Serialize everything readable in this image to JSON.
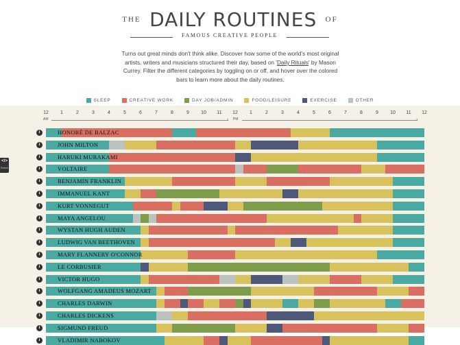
{
  "header": {
    "title_pre": "THE",
    "title_main": "DAILY ROUTINES",
    "title_post": "OF",
    "subtitle": "FAMOUS CREATIVE PEOPLE",
    "intro_1": "Turns out great minds don't think alike. Discover how some of the world's most original artists, writers and musicians structured their day, based on '",
    "intro_link": "Daily Rituals",
    "intro_2": "' by Mason Currey. Filter the different categories by toggling on or off, and hover over the colored bars to learn more about the daily routines."
  },
  "colors": {
    "sleep": "#4aa9a0",
    "creative": "#d96e62",
    "dayjob": "#7e9d4c",
    "food": "#d7c25e",
    "exercise": "#4e5879",
    "other": "#bcc2c0"
  },
  "legend": [
    {
      "key": "sleep",
      "label": "SLEEP"
    },
    {
      "key": "creative",
      "label": "CREATIVE WORK"
    },
    {
      "key": "dayjob",
      "label": "DAY JOB/ADMIN"
    },
    {
      "key": "food",
      "label": "FOOD/LEISURE"
    },
    {
      "key": "exercise",
      "label": "EXERCISE"
    },
    {
      "key": "other",
      "label": "OTHER"
    }
  ],
  "axis": {
    "ticks": [
      "12",
      "1",
      "2",
      "3",
      "4",
      "5",
      "6",
      "7",
      "8",
      "9",
      "10",
      "11",
      "12",
      "1",
      "2",
      "3",
      "4",
      "5",
      "6",
      "7",
      "8",
      "9",
      "10",
      "11",
      "12"
    ],
    "am": "AM",
    "pm": "PM"
  },
  "side_tab": {
    "glyph": "</>",
    "label": "Embed"
  },
  "info_glyph": "i",
  "people": [
    {
      "name": "HONORÉ DE BALZAC",
      "segments": [
        [
          "sleep",
          0,
          1
        ],
        [
          "creative",
          1,
          8
        ],
        [
          "sleep",
          8,
          9.5
        ],
        [
          "creative",
          9.5,
          15.5
        ],
        [
          "food",
          15.5,
          18
        ],
        [
          "sleep",
          18,
          24
        ]
      ]
    },
    {
      "name": "JOHN MILTON",
      "segments": [
        [
          "sleep",
          0,
          4
        ],
        [
          "other",
          4,
          5
        ],
        [
          "food",
          5,
          7
        ],
        [
          "creative",
          7,
          12
        ],
        [
          "food",
          12,
          13
        ],
        [
          "exercise",
          13,
          16
        ],
        [
          "food",
          16,
          21
        ],
        [
          "sleep",
          21,
          24
        ]
      ]
    },
    {
      "name": "HARUKI MURAKAMI",
      "segments": [
        [
          "sleep",
          0,
          4
        ],
        [
          "creative",
          4,
          12
        ],
        [
          "exercise",
          12,
          13
        ],
        [
          "food",
          13,
          21
        ],
        [
          "sleep",
          21,
          24
        ]
      ]
    },
    {
      "name": "VOLTAIRE",
      "segments": [
        [
          "sleep",
          0,
          4
        ],
        [
          "creative",
          4,
          12
        ],
        [
          "other",
          12,
          12.5
        ],
        [
          "creative",
          12.5,
          14
        ],
        [
          "dayjob",
          14,
          16
        ],
        [
          "creative",
          16,
          20
        ],
        [
          "food",
          20,
          21.5
        ],
        [
          "creative",
          21.5,
          24
        ]
      ]
    },
    {
      "name": "BENJAMIN FRANKLIN",
      "segments": [
        [
          "sleep",
          0,
          5
        ],
        [
          "food",
          5,
          8
        ],
        [
          "creative",
          8,
          12
        ],
        [
          "food",
          12,
          14
        ],
        [
          "creative",
          14,
          18
        ],
        [
          "food",
          18,
          22
        ],
        [
          "sleep",
          22,
          24
        ]
      ]
    },
    {
      "name": "IMMANUEL KANT",
      "segments": [
        [
          "sleep",
          0,
          5
        ],
        [
          "food",
          5,
          6
        ],
        [
          "creative",
          6,
          7
        ],
        [
          "dayjob",
          7,
          11
        ],
        [
          "food",
          11,
          15
        ],
        [
          "exercise",
          15,
          16
        ],
        [
          "food",
          16,
          22
        ],
        [
          "sleep",
          22,
          24
        ]
      ]
    },
    {
      "name": "KURT VONNEGUT",
      "segments": [
        [
          "sleep",
          0,
          5.5
        ],
        [
          "creative",
          5.5,
          8
        ],
        [
          "food",
          8,
          8.5
        ],
        [
          "creative",
          8.5,
          10
        ],
        [
          "exercise",
          10,
          11.5
        ],
        [
          "food",
          11.5,
          12.5
        ],
        [
          "dayjob",
          12.5,
          17.5
        ],
        [
          "food",
          17.5,
          22
        ],
        [
          "sleep",
          22,
          24
        ]
      ]
    },
    {
      "name": "MAYA ANGELOU",
      "segments": [
        [
          "sleep",
          0,
          5.5
        ],
        [
          "other",
          5.5,
          6
        ],
        [
          "dayjob",
          6,
          6.5
        ],
        [
          "other",
          6.5,
          7
        ],
        [
          "creative",
          7,
          14
        ],
        [
          "food",
          14,
          19.5
        ],
        [
          "creative",
          19.5,
          20
        ],
        [
          "food",
          20,
          22
        ],
        [
          "sleep",
          22,
          24
        ]
      ]
    },
    {
      "name": "WYSTAN HUGH AUDEN",
      "segments": [
        [
          "sleep",
          0,
          6
        ],
        [
          "food",
          6,
          6.5
        ],
        [
          "creative",
          6.5,
          11.5
        ],
        [
          "food",
          11.5,
          12
        ],
        [
          "creative",
          12,
          18.5
        ],
        [
          "food",
          18.5,
          22
        ],
        [
          "sleep",
          22,
          24
        ]
      ]
    },
    {
      "name": "LUDWIG VAN BEETHOVEN",
      "segments": [
        [
          "sleep",
          0,
          6
        ],
        [
          "food",
          6,
          6.5
        ],
        [
          "creative",
          6.5,
          14.5
        ],
        [
          "food",
          14.5,
          15.5
        ],
        [
          "exercise",
          15.5,
          16.5
        ],
        [
          "food",
          16.5,
          22
        ],
        [
          "sleep",
          22,
          24
        ]
      ]
    },
    {
      "name": "MARY FLANNERY O'CONNOR",
      "segments": [
        [
          "sleep",
          0,
          6
        ],
        [
          "food",
          6,
          9
        ],
        [
          "creative",
          9,
          12
        ],
        [
          "food",
          12,
          21
        ],
        [
          "sleep",
          21,
          24
        ]
      ]
    },
    {
      "name": "LE CORBUSIER",
      "segments": [
        [
          "sleep",
          0,
          6
        ],
        [
          "exercise",
          6,
          6.5
        ],
        [
          "food",
          6.5,
          9
        ],
        [
          "dayjob",
          9,
          18
        ],
        [
          "food",
          18,
          23
        ],
        [
          "sleep",
          23,
          24
        ]
      ]
    },
    {
      "name": "VICTOR HUGO",
      "segments": [
        [
          "sleep",
          0,
          6
        ],
        [
          "food",
          6,
          6.5
        ],
        [
          "creative",
          6.5,
          11
        ],
        [
          "other",
          11,
          12
        ],
        [
          "food",
          12,
          13
        ],
        [
          "exercise",
          13,
          15
        ],
        [
          "other",
          15,
          16
        ],
        [
          "food",
          16,
          18
        ],
        [
          "creative",
          18,
          20
        ],
        [
          "food",
          20,
          22
        ],
        [
          "sleep",
          22,
          24
        ]
      ]
    },
    {
      "name": "WOLFGANG AMADEUS MOZART",
      "segments": [
        [
          "sleep",
          0,
          7
        ],
        [
          "food",
          7,
          7.5
        ],
        [
          "creative",
          7.5,
          9
        ],
        [
          "dayjob",
          9,
          13
        ],
        [
          "food",
          13,
          17
        ],
        [
          "creative",
          17,
          21
        ],
        [
          "food",
          21,
          23
        ],
        [
          "creative",
          23,
          24
        ]
      ]
    },
    {
      "name": "CHARLES DARWIN",
      "segments": [
        [
          "sleep",
          0,
          7
        ],
        [
          "food",
          7,
          7.5
        ],
        [
          "creative",
          7.5,
          8.5
        ],
        [
          "exercise",
          8.5,
          9
        ],
        [
          "creative",
          9,
          10
        ],
        [
          "food",
          10,
          11
        ],
        [
          "creative",
          11,
          12
        ],
        [
          "dayjob",
          12,
          12.5
        ],
        [
          "exercise",
          12.5,
          13
        ],
        [
          "food",
          13,
          15
        ],
        [
          "sleep",
          15,
          16
        ],
        [
          "food",
          16,
          17
        ],
        [
          "dayjob",
          17,
          18
        ],
        [
          "food",
          18,
          21.5
        ],
        [
          "sleep",
          21.5,
          22.5
        ],
        [
          "creative",
          22.5,
          24
        ]
      ]
    },
    {
      "name": "CHARLES DICKENS",
      "segments": [
        [
          "sleep",
          0,
          7
        ],
        [
          "other",
          7,
          8
        ],
        [
          "food",
          8,
          9
        ],
        [
          "creative",
          9,
          14
        ],
        [
          "exercise",
          14,
          17
        ],
        [
          "food",
          17,
          24
        ]
      ]
    },
    {
      "name": "SIGMUND FREUD",
      "segments": [
        [
          "sleep",
          0,
          7
        ],
        [
          "food",
          7,
          8
        ],
        [
          "dayjob",
          8,
          12
        ],
        [
          "food",
          12,
          14
        ],
        [
          "exercise",
          14,
          15
        ],
        [
          "creative",
          15,
          21
        ],
        [
          "food",
          21,
          23
        ],
        [
          "creative",
          23,
          24
        ]
      ]
    },
    {
      "name": "VLADIMIR NABOKOV",
      "segments": [
        [
          "sleep",
          0,
          7.5
        ],
        [
          "food",
          7.5,
          10
        ],
        [
          "creative",
          10,
          11
        ],
        [
          "exercise",
          11,
          11.5
        ],
        [
          "food",
          11.5,
          13
        ],
        [
          "creative",
          13,
          17.5
        ],
        [
          "exercise",
          17.5,
          18
        ],
        [
          "food",
          18,
          23
        ],
        [
          "sleep",
          23,
          24
        ]
      ]
    }
  ]
}
